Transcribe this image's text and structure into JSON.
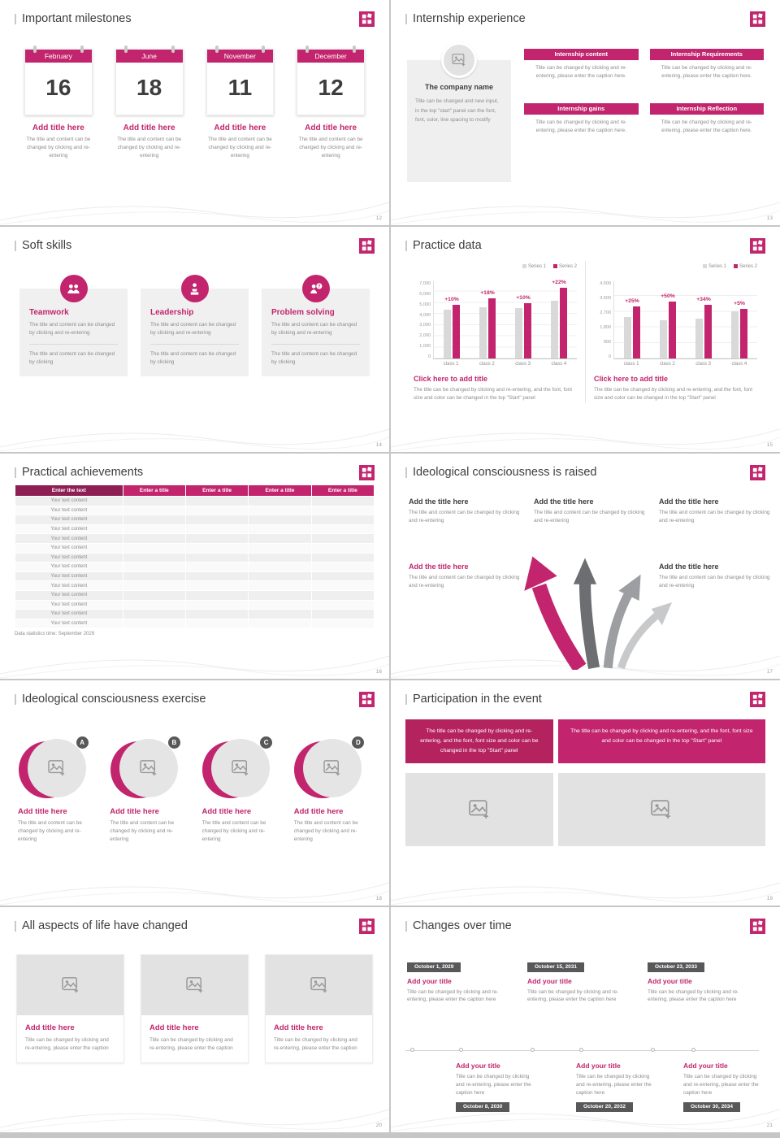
{
  "ui": {
    "accent": "#c2256d",
    "accent_dark": "#8e1f55",
    "badge_gray": "#58585a",
    "bar_gray": "#d9d9d9"
  },
  "slides": {
    "milestones": {
      "title": "Important milestones",
      "page": "12",
      "items": [
        {
          "month": "February",
          "day": "16",
          "heading": "Add title here",
          "caption": "The title and content can be changed by clicking and re-entering"
        },
        {
          "month": "June",
          "day": "18",
          "heading": "Add title here",
          "caption": "The title and content can be changed by clicking and re-entering"
        },
        {
          "month": "November",
          "day": "11",
          "heading": "Add title here",
          "caption": "The title and content can be changed by clicking and re-entering"
        },
        {
          "month": "December",
          "day": "12",
          "heading": "Add title here",
          "caption": "The title and content can be changed by clicking and re-entering"
        }
      ]
    },
    "internship": {
      "title": "Internship experience",
      "page": "13",
      "company": {
        "name": "The company name",
        "caption": "Title can be changed and new input, in the top \"start\" panel can the font, font, color, line spacing to modify"
      },
      "boxes": [
        {
          "heading": "Internship content",
          "caption": "Title can be changed by clicking and re-entering, please enter the caption here."
        },
        {
          "heading": "Internship Requirements",
          "caption": "Title can be changed by clicking and re-entering, please enter the caption here."
        },
        {
          "heading": "Internship gains",
          "caption": "Title can be changed by clicking and re-entering, please enter the caption here."
        },
        {
          "heading": "Internship Reflection",
          "caption": "Title can be changed by clicking and re-entering, please enter the caption here."
        }
      ]
    },
    "skills": {
      "title": "Soft skills",
      "page": "14",
      "cards": [
        {
          "icon": "teamwork-icon",
          "heading": "Teamwork",
          "body": "The title and content can be changed by clicking and re-entering",
          "body2": "The title and content can be changed by clicking"
        },
        {
          "icon": "leadership-icon",
          "heading": "Leadership",
          "body": "The title and content can be changed by clicking and re-entering",
          "body2": "The title and content can be changed by clicking"
        },
        {
          "icon": "problem-solving-icon",
          "heading": "Problem solving",
          "body": "The title and content can be changed by clicking and re-entering",
          "body2": "The title and content can be changed by clicking"
        }
      ]
    },
    "practice": {
      "title": "Practice data",
      "page": "15",
      "charts": [
        {
          "link": "Click here to add title",
          "caption": "The title can be changed by clicking and re-entering, and the font, font size and color can be changed in the top \"Start\" panel"
        },
        {
          "link": "Click here to add title",
          "caption": "The title can be changed by clicking and re-entering, and the font, font size and color can be changed in the top \"Start\" panel"
        }
      ]
    },
    "achievements": {
      "title": "Practical achievements",
      "page": "16",
      "table": {
        "first_header": "Enter the text",
        "headers": [
          "Enter a title",
          "Enter a title",
          "Enter a title",
          "Enter a title"
        ],
        "rows": [
          "Your text content",
          "Your text content",
          "Your text content",
          "Your text content",
          "Your text content",
          "Your text content",
          "Your text content",
          "Your text content",
          "Your text content",
          "Your text content",
          "Your text content",
          "Your text content",
          "Your text content",
          "Your text content"
        ],
        "note": "Data statistics time: September 2029"
      }
    },
    "raised": {
      "title": "Ideological consciousness is raised",
      "page": "17",
      "items": [
        {
          "heading": "Add the title here",
          "caption": "The title and content can be changed by clicking and re-entering"
        },
        {
          "heading": "Add the title here",
          "caption": "The title and content can be changed by clicking and re-entering"
        },
        {
          "heading": "Add the title here",
          "caption": "The title and content can be changed by clicking and re-entering"
        },
        {
          "heading": "Add the title here",
          "caption": "The title and content can be changed by clicking and re-entering"
        },
        {
          "heading": "Add the title here",
          "caption": "The title and content can be changed by clicking and re-entering"
        }
      ]
    },
    "exercise": {
      "title": "Ideological consciousness exercise",
      "page": "18",
      "items": [
        {
          "letter": "A",
          "heading": "Add title here",
          "caption": "The title and content can be changed by clicking and re-entering"
        },
        {
          "letter": "B",
          "heading": "Add title here",
          "caption": "The title and content can be changed by clicking and re-entering"
        },
        {
          "letter": "C",
          "heading": "Add title here",
          "caption": "The title and content can be changed by clicking and re-entering"
        },
        {
          "letter": "D",
          "heading": "Add title here",
          "caption": "The title and content can be changed by clicking and re-entering"
        }
      ]
    },
    "participation": {
      "title": "Participation in the event",
      "page": "19",
      "banners": [
        "The title can be changed by clicking and re-entering, and the font, font size and color can be changed in the top \"Start\" panel",
        "The title can be changed by clicking and re-entering, and the font, font size and color can be changed in the top \"Start\" panel"
      ]
    },
    "life": {
      "title": "All aspects of life have changed",
      "page": "20",
      "cards": [
        {
          "heading": "Add title here",
          "caption": "Title can be changed by clicking and re-entering, please enter the caption"
        },
        {
          "heading": "Add title here",
          "caption": "Title can be changed by clicking and re-entering, please enter the caption"
        },
        {
          "heading": "Add title here",
          "caption": "Title can be changed by clicking and re-entering, please enter the caption"
        }
      ]
    },
    "changes": {
      "title": "Changes over time",
      "page": "21",
      "top": [
        {
          "date": "October 1, 2029",
          "heading": "Add your title",
          "caption": "Title can be changed by clicking and re-entering, please enter the caption here"
        },
        {
          "date": "October 15, 2031",
          "heading": "Add your title",
          "caption": "Title can be changed by clicking and re-entering, please enter the caption here"
        },
        {
          "date": "October 23, 2033",
          "heading": "Add your title",
          "caption": "Title can be changed by clicking and re-entering, please enter the caption here"
        }
      ],
      "bottom": [
        {
          "heading": "Add your title",
          "caption": "Title can be changed by clicking and re-entering, please enter the caption here",
          "date": "October 8, 2030"
        },
        {
          "heading": "Add your title",
          "caption": "Title can be changed by clicking and re-entering, please enter the caption here",
          "date": "October 20, 2032"
        },
        {
          "heading": "Add your title",
          "caption": "Title can be changed by clicking and re-entering, please enter the caption here",
          "date": "October 30, 2034"
        }
      ]
    }
  },
  "chart_data": [
    {
      "type": "bar",
      "title": "Click here to add title",
      "categories": [
        "class 1",
        "class 2",
        "class 3",
        "class 4"
      ],
      "series": [
        {
          "name": "Series 1",
          "color": "#d9d9d9",
          "values": [
            4400,
            4600,
            4500,
            5200
          ]
        },
        {
          "name": "Series 2",
          "color": "#c2256d",
          "values": [
            4840,
            5430,
            4950,
            6340
          ]
        }
      ],
      "growth_labels": [
        "+10%",
        "+18%",
        "+10%",
        "+22%"
      ],
      "ylim": [
        0,
        7000
      ],
      "yticks": [
        "7,000",
        "6,000",
        "5,000",
        "4,000",
        "3,000",
        "2,000",
        "1,000",
        "0"
      ],
      "legend_position": "top-right",
      "grid": true
    },
    {
      "type": "bar",
      "title": "Click here to add title",
      "categories": [
        "class 1",
        "class 2",
        "class 3",
        "class 4"
      ],
      "series": [
        {
          "name": "Series 1",
          "color": "#d9d9d9",
          "values": [
            2400,
            2200,
            2300,
            2700
          ]
        },
        {
          "name": "Series 2",
          "color": "#c2256d",
          "values": [
            3000,
            3300,
            3080,
            2840
          ]
        }
      ],
      "growth_labels": [
        "+25%",
        "+50%",
        "+34%",
        "+5%"
      ],
      "ylim": [
        0,
        4500
      ],
      "yticks": [
        "4,500",
        "3,600",
        "2,700",
        "1,800",
        "900",
        "0"
      ],
      "legend_position": "top-right",
      "grid": true
    }
  ]
}
